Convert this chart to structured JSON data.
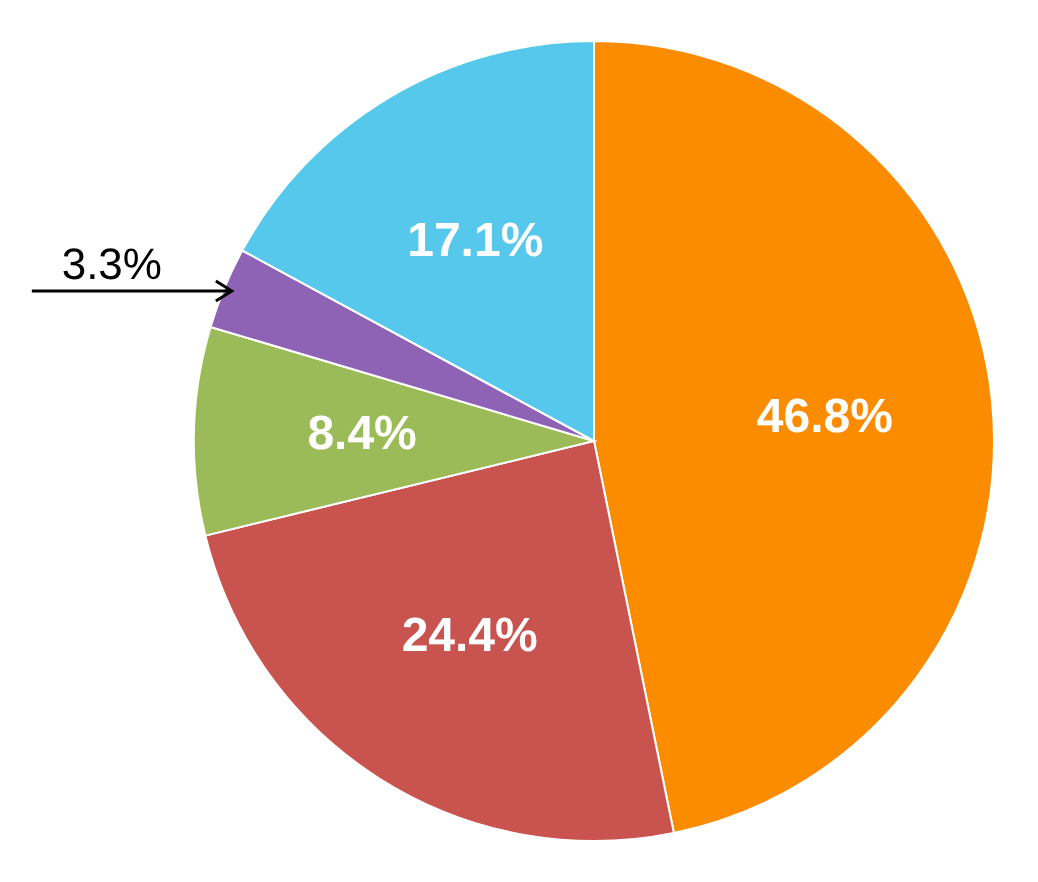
{
  "chart_data": {
    "type": "pie",
    "categories": [
      null,
      null,
      null,
      null,
      null
    ],
    "values": [
      46.8,
      24.4,
      8.4,
      3.3,
      17.1
    ],
    "colors": [
      "#fb8c00",
      "#c9534f",
      "#9bbb59",
      "#8e63b5",
      "#55c8ec"
    ],
    "value_labels": [
      "46.8%",
      "24.4%",
      "8.4%",
      "3.3%",
      "17.1%"
    ]
  }
}
